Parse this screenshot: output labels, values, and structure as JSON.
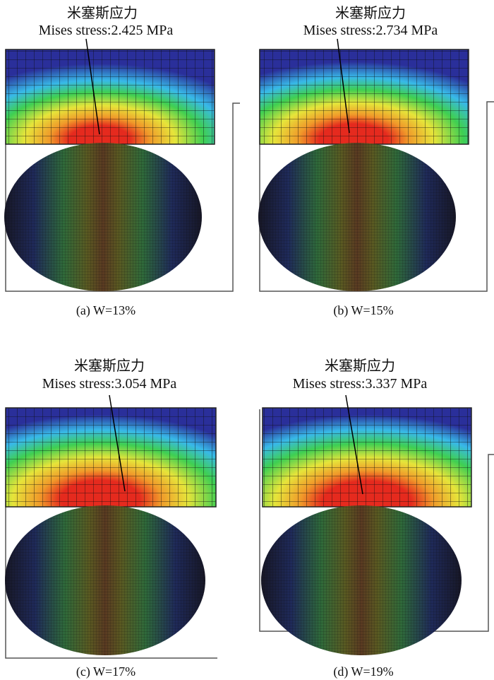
{
  "panels": [
    {
      "id": "a",
      "title_cn": "米塞斯应力",
      "title_en": "Mises stress:2.425 MPa",
      "caption": "(a) W=13%"
    },
    {
      "id": "b",
      "title_cn": "米塞斯应力",
      "title_en": "Mises stress:2.734 MPa",
      "caption": "(b) W=15%"
    },
    {
      "id": "c",
      "title_cn": "米塞斯应力",
      "title_en": "Mises stress:3.054 MPa",
      "caption": "(c) W=17%"
    },
    {
      "id": "d",
      "title_cn": "米塞斯应力",
      "title_en": "Mises stress:3.337 MPa",
      "caption": "(d) W=19%"
    }
  ],
  "colors": {
    "blue": "#2a2f9a",
    "cyan": "#38b9e8",
    "green": "#3fcf52",
    "yellow": "#e6e43a",
    "orange": "#f09a2a",
    "red": "#e52a1e",
    "mesh_dark": "#171726",
    "mesh_brown": "#5a3a22"
  }
}
